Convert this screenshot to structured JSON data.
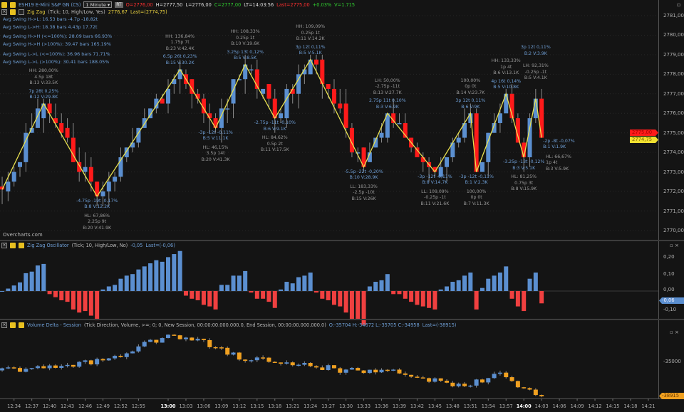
{
  "header": {
    "symbol": "ESH19 E-Mini S&P GN (CS)",
    "timeframe": "1 Minute",
    "rt_label": "RT",
    "open": "O=2776,00",
    "high": "H=2777,50",
    "low": "L=2776,00",
    "close": "C=2777,00",
    "last_time": "LT=14:03:56",
    "last": "Last=2775,00",
    "change": "+0.03%",
    "volume": "V=1.715"
  },
  "zigzag_header": {
    "name": "Zig Zag",
    "params": "(Tick; 10, High/Low, Yes)",
    "value": "2776,67",
    "last": "Last=(2774,75)"
  },
  "stats": [
    "Avg Swing H->L: 16.53 bars -4.7p -18.82t",
    "Avg Swing L->H: 18.38 bars 4.43p 17.72t",
    "Avg Swing H->H (<=100%): 28.09 bars 66.93%",
    "Avg Swing H->H (>100%): 39.47 bars 165.19%",
    "Avg Swing L->L (<=100%):  36.96 bars 71.71%",
    "Avg Swing L->L (>100%): 30.41 bars 188.05%"
  ],
  "watermark": "Overcharts.com",
  "oscillator_header": {
    "name": "Zig Zag Oscillator",
    "params": "(Tick; 10, High/Low, No)",
    "value": "-0,05",
    "last": "Last=(-0,06)"
  },
  "delta_header": {
    "name": "Volume Delta - Session",
    "params": "(Tick Direction, Volume, >=; 0; 0, New Session, 00:00:00.000.000.0, End Session, 00:00:00.000.000.0)",
    "values": "O:-35704 H:-34672 L:-35705 C:-34958",
    "last": "Last=(-38915)"
  },
  "price_axis": [
    "2781,00",
    "2780,00",
    "2779,00",
    "2778,00",
    "2777,00",
    "2776,00",
    "2775,00",
    "2774,00",
    "2773,00",
    "2772,00",
    "2771,00",
    "2770,00"
  ],
  "price_tags": {
    "last": "2775,00",
    "zigzag": "2774,75"
  },
  "oscillator_axis": [
    "0,20",
    "0,10",
    "0,00",
    "-0,10"
  ],
  "oscillator_tag": "-0,06",
  "delta_axis": [
    "-35000"
  ],
  "delta_tag": "-38915",
  "time_axis": [
    "12:34",
    "12:37",
    "12:40",
    "12:43",
    "12:46",
    "12:49",
    "12:52",
    "12:55",
    "13:00",
    "13:03",
    "13:06",
    "13:09",
    "13:12",
    "13:15",
    "13:18",
    "13:21",
    "13:24",
    "13:27",
    "13:30",
    "13:33",
    "13:36",
    "13:39",
    "13:42",
    "13:45",
    "13:48",
    "13:51",
    "13:54",
    "13:57",
    "14:00",
    "14:03",
    "14:06",
    "14:09",
    "14:12",
    "14:15",
    "14:18",
    "14:21"
  ],
  "colors": {
    "up": "#5b8fd0",
    "down": "#ff1a1a",
    "zigzag": "#e8e050",
    "delta_down": "#f0a020",
    "delta_up": "#5b8fd0"
  },
  "chart_data": {
    "type": "candlestick",
    "bar_minutes_from_1300": [
      -28,
      63
    ],
    "price_range": [
      2770,
      2781
    ],
    "zigzag": {
      "pivots": [
        {
          "t": -28,
          "price": 2772.1
        },
        {
          "t": -21,
          "price": 2776.5,
          "kind": "high",
          "grey": [
            "HH: 280,00%",
            "4.5p 18t",
            "B:13 V:33.5K"
          ],
          "blue": [
            "7p 28t 0,25%",
            "B:12 V:29.8K"
          ]
        },
        {
          "t": -12,
          "price": 2771.75,
          "kind": "low",
          "blue": [
            "-4.75p -19t -0,17%",
            "B:8 V:12.2K"
          ],
          "grey": [
            "HL: 67,86%",
            "2.25p 9t",
            "B:20 V:41.9K"
          ]
        },
        {
          "t": 2,
          "price": 2778.25,
          "kind": "high",
          "grey": [
            "HH: 136,84%",
            "1.75p 7t",
            "B:23 V:42.4K"
          ],
          "blue": [
            "6.5p 26t 0,23%",
            "B:15 V:30.2K"
          ]
        },
        {
          "t": 8,
          "price": 2775.25,
          "kind": "low",
          "blue": [
            "-3p -12t -0,11%",
            "B:5 V:11.1K"
          ],
          "grey": [
            "HL: 46,15%",
            "3.5p 14t",
            "B:20 V:41.3K"
          ]
        },
        {
          "t": 13,
          "price": 2778.5,
          "kind": "high",
          "grey": [
            "HH: 108,33%",
            "0.25p 1t",
            "B:10 V:19.6K"
          ],
          "blue": [
            "3.25p 13t 0,12%",
            "B:5 V:8.5K"
          ]
        },
        {
          "t": 18,
          "price": 2775.75,
          "kind": "low",
          "blue": [
            "-2.75p -11t -0,10%",
            "B:6 V:9.1K"
          ],
          "grey": [
            "HL: 84,62%",
            "0.5p 2t",
            "B:11 V:17.5K"
          ]
        },
        {
          "t": 24,
          "price": 2778.75,
          "kind": "high",
          "grey": [
            "HH: 109,09%",
            "0.25p 1t",
            "B:11 V:14.2K"
          ],
          "blue": [
            "3p 12t 0,11%",
            "B:5 V:5.1K"
          ]
        },
        {
          "t": 33,
          "price": 2773.25,
          "kind": "low",
          "blue": [
            "-5.5p -22t -0,20%",
            "B:10 V:28.9K"
          ],
          "grey": [
            "LL: 183,33%",
            "-2.5p -10t",
            "B:15 V:26K"
          ]
        },
        {
          "t": 37,
          "price": 2776.0,
          "kind": "high",
          "grey": [
            "LH: 50,00%",
            "-2.75p -11t",
            "B:13 V:27.7K"
          ],
          "blue": [
            "2.75p 11t 0,10%",
            "B:3 V:6.9K"
          ]
        },
        {
          "t": 45,
          "price": 2773.0,
          "kind": "low",
          "blue": [
            "-3p -12t -0,11%",
            "B:8 V:14.7K"
          ],
          "grey": [
            "LL: 109,09%",
            "-0.25p -1t",
            "B:11 V:21.6K"
          ]
        },
        {
          "t": 51,
          "price": 2776.0,
          "kind": "high",
          "grey": [
            "100,00%",
            "0p 0t",
            "B:14 V:23.7K"
          ],
          "blue": [
            "3p 12t 0,11%",
            "B:6 V:9K"
          ]
        },
        {
          "t": 52,
          "price": 2773.0,
          "kind": "low",
          "blue": [
            "-3p -12t -0,11%",
            "B:1 V:2.3K"
          ],
          "grey": [
            "100,00%",
            "0p 0t",
            "B:7 V:11.3K"
          ]
        },
        {
          "t": 57,
          "price": 2777.0,
          "kind": "high",
          "grey": [
            "HH: 133,33%",
            "1p 4t",
            "B:6 V:13.1K"
          ],
          "blue": [
            "4p 16t 0,14%",
            "B:5 V:10.8K"
          ]
        },
        {
          "t": 60,
          "price": 2773.75,
          "kind": "low",
          "blue": [
            "-3.25p -13t -0,12%",
            "B:3 V:5.1K"
          ],
          "grey": [
            "HL: 81,25%",
            "0.75p 3t",
            "B:8 V:15.9K"
          ]
        },
        {
          "t": 62,
          "price": 2776.75,
          "kind": "high",
          "grey": [
            "LH: 92,31%",
            "-0.25p -1t",
            "B:5 V:4.1K"
          ],
          "blue": [
            "3p 12t 0,11%",
            "B:2 V:3.9K"
          ]
        },
        {
          "t": 63,
          "price": 2774.75,
          "kind": "end",
          "side": "right",
          "blue": [
            "-2p -8t -0,07%",
            "B:1 V:1.9K"
          ],
          "grey": [
            "HL: 66,67%",
            "1p 4t",
            "B:3 V:5.9K"
          ]
        }
      ]
    },
    "oscillator": {
      "range": [
        -0.2,
        0.25
      ],
      "last": -0.06
    },
    "delta": {
      "range": [
        -39500,
        -31000
      ],
      "path": [
        [
          -28,
          -36000
        ],
        [
          -20,
          -35700
        ],
        [
          -10,
          -34800
        ],
        [
          0,
          -32000
        ],
        [
          5,
          -32600
        ],
        [
          12,
          -34500
        ],
        [
          20,
          -35200
        ],
        [
          30,
          -36000
        ],
        [
          40,
          -36300
        ],
        [
          48,
          -37800
        ],
        [
          52,
          -37300
        ],
        [
          56,
          -36400
        ],
        [
          60,
          -38300
        ],
        [
          63,
          -38915
        ]
      ]
    }
  }
}
